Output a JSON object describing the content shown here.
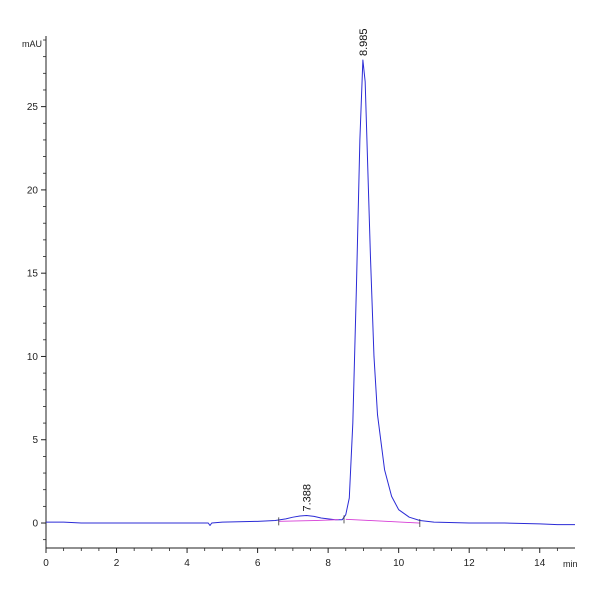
{
  "chart_data": {
    "type": "line",
    "title": "",
    "xlabel": "min",
    "ylabel": "mAU",
    "xlim": [
      0,
      15
    ],
    "ylim": [
      -1.5,
      29
    ],
    "x_ticks": [
      0,
      2,
      4,
      6,
      8,
      10,
      12,
      14
    ],
    "y_ticks": [
      0,
      5,
      10,
      15,
      20,
      25
    ],
    "grid": false,
    "series": [
      {
        "color": "#2b2bd6",
        "x": [
          0,
          0.5,
          1,
          2,
          3,
          4,
          4.6,
          4.65,
          4.7,
          5,
          6,
          6.5,
          6.8,
          7.0,
          7.2,
          7.388,
          7.6,
          7.8,
          8.0,
          8.2,
          8.4,
          8.5,
          8.6,
          8.7,
          8.8,
          8.9,
          8.985,
          9.05,
          9.1,
          9.2,
          9.3,
          9.4,
          9.6,
          9.8,
          10.0,
          10.3,
          10.6,
          11,
          12,
          13,
          14,
          14.5,
          15
        ],
        "y": [
          0.05,
          0.05,
          0.0,
          0.0,
          0.0,
          0.0,
          0.0,
          -0.15,
          0.0,
          0.05,
          0.1,
          0.15,
          0.25,
          0.35,
          0.42,
          0.45,
          0.4,
          0.3,
          0.25,
          0.2,
          0.2,
          0.5,
          1.5,
          6.0,
          14.0,
          23.0,
          27.8,
          26.5,
          23.0,
          16.0,
          10.0,
          6.5,
          3.2,
          1.6,
          0.8,
          0.35,
          0.15,
          0.05,
          0.0,
          0.0,
          -0.05,
          -0.1,
          -0.1
        ]
      },
      {
        "color": "#d63cd6",
        "x": [
          6.6,
          7.6,
          8.3
        ],
        "y": [
          0.1,
          0.15,
          0.2
        ]
      },
      {
        "color": "#d63cd6",
        "x": [
          8.5,
          9.5,
          10.6
        ],
        "y": [
          0.22,
          0.12,
          0.0
        ]
      }
    ],
    "peaks": [
      {
        "x": 7.388,
        "y": 0.45,
        "label": "7.388"
      },
      {
        "x": 8.985,
        "y": 27.8,
        "label": "8.985"
      }
    ]
  }
}
